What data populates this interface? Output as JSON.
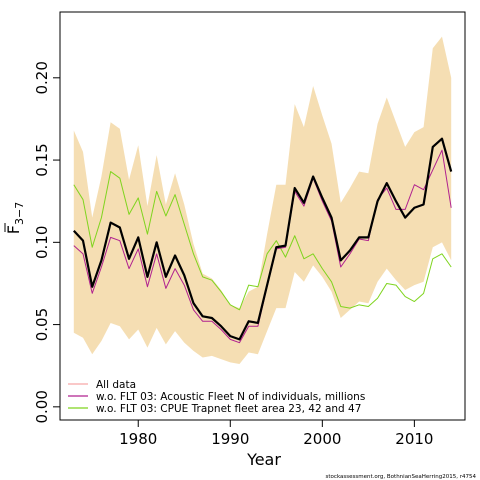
{
  "chart_data": {
    "type": "line",
    "xlabel": "Year",
    "ylabel_main": "F",
    "ylabel_sub": "3−7",
    "credit": "stockassessment.org, BothnianSeaHerring2015, r4754",
    "xlim": [
      1971.5,
      2015.5
    ],
    "ylim": [
      -0.008,
      0.24
    ],
    "xticks": [
      1980,
      1990,
      2000,
      2010
    ],
    "yticks": [
      0.0,
      0.05,
      0.1,
      0.15,
      0.2
    ],
    "ytick_labels": [
      "0.00",
      "0.05",
      "0.10",
      "0.15",
      "0.20"
    ],
    "x": [
      1973,
      1974,
      1975,
      1976,
      1977,
      1978,
      1979,
      1980,
      1981,
      1982,
      1983,
      1984,
      1985,
      1986,
      1987,
      1988,
      1989,
      1990,
      1991,
      1992,
      1993,
      1994,
      1995,
      1996,
      1997,
      1998,
      1999,
      2000,
      2001,
      2002,
      2003,
      2004,
      2005,
      2006,
      2007,
      2008,
      2009,
      2010,
      2011,
      2012,
      2013,
      2014
    ],
    "band": {
      "color": "#f5deb3",
      "upper": [
        0.168,
        0.155,
        0.115,
        0.14,
        0.173,
        0.169,
        0.138,
        0.159,
        0.122,
        0.153,
        0.123,
        0.142,
        0.123,
        0.099,
        0.081,
        0.078,
        0.071,
        0.062,
        0.06,
        0.07,
        0.073,
        0.105,
        0.135,
        0.135,
        0.184,
        0.17,
        0.195,
        0.177,
        0.16,
        0.124,
        0.133,
        0.143,
        0.142,
        0.172,
        0.188,
        0.173,
        0.158,
        0.167,
        0.17,
        0.218,
        0.225,
        0.2
      ],
      "lower": [
        0.045,
        0.042,
        0.032,
        0.04,
        0.051,
        0.049,
        0.041,
        0.047,
        0.036,
        0.048,
        0.038,
        0.046,
        0.039,
        0.034,
        0.03,
        0.031,
        0.029,
        0.027,
        0.026,
        0.033,
        0.032,
        0.046,
        0.06,
        0.06,
        0.082,
        0.076,
        0.086,
        0.079,
        0.07,
        0.054,
        0.059,
        0.064,
        0.063,
        0.076,
        0.084,
        0.077,
        0.071,
        0.074,
        0.076,
        0.097,
        0.1,
        0.089
      ]
    },
    "series": [
      {
        "name": "All data",
        "color": "#000000",
        "width": 2.2,
        "values": [
          0.107,
          0.101,
          0.073,
          0.089,
          0.112,
          0.109,
          0.09,
          0.103,
          0.079,
          0.1,
          0.079,
          0.092,
          0.08,
          0.063,
          0.055,
          0.054,
          0.049,
          0.043,
          0.041,
          0.052,
          0.051,
          0.074,
          0.097,
          0.098,
          0.133,
          0.124,
          0.14,
          0.127,
          0.115,
          0.089,
          0.095,
          0.103,
          0.103,
          0.125,
          0.136,
          0.125,
          0.115,
          0.121,
          0.123,
          0.158,
          0.163,
          0.143
        ]
      },
      {
        "name": "w.o. FLT 03: Acoustic Fleet   N of individuals, millions",
        "color": "#b0208f",
        "width": 1,
        "values": [
          0.098,
          0.093,
          0.069,
          0.085,
          0.103,
          0.101,
          0.084,
          0.096,
          0.073,
          0.093,
          0.072,
          0.084,
          0.074,
          0.059,
          0.052,
          0.052,
          0.047,
          0.041,
          0.039,
          0.049,
          0.049,
          0.073,
          0.096,
          0.097,
          0.131,
          0.122,
          0.139,
          0.125,
          0.113,
          0.085,
          0.093,
          0.102,
          0.101,
          0.126,
          0.133,
          0.12,
          0.12,
          0.135,
          0.132,
          0.144,
          0.156,
          0.121
        ]
      },
      {
        "name": "w.o. FLT 03: CPUE Trapnet fleet area 23, 42 and 47",
        "color": "#7fd41e",
        "width": 1,
        "values": [
          0.135,
          0.126,
          0.097,
          0.115,
          0.143,
          0.139,
          0.117,
          0.127,
          0.105,
          0.131,
          0.116,
          0.129,
          0.111,
          0.093,
          0.079,
          0.077,
          0.07,
          0.062,
          0.059,
          0.074,
          0.073,
          0.093,
          0.101,
          0.091,
          0.104,
          0.09,
          0.093,
          0.084,
          0.076,
          0.061,
          0.06,
          0.062,
          0.061,
          0.066,
          0.075,
          0.074,
          0.067,
          0.064,
          0.069,
          0.09,
          0.093,
          0.085
        ]
      },
      {
        "name": "",
        "color": "#f7a6a6",
        "width": 1,
        "values": [
          0.107,
          0.101,
          0.073,
          0.089,
          0.112,
          0.109,
          0.09,
          0.103,
          0.079,
          0.1,
          0.079,
          0.092,
          0.08,
          0.063,
          0.055,
          0.054,
          0.049,
          0.043,
          0.041,
          0.052,
          0.051,
          0.074,
          0.097,
          0.098,
          0.133,
          0.124,
          0.14,
          0.127,
          0.115,
          0.089,
          0.095,
          0.103,
          0.103,
          0.125,
          0.136,
          0.125,
          0.115,
          0.121,
          0.123,
          0.158,
          0.163,
          0.143
        ]
      }
    ],
    "legend": {
      "placement": "bottom-left",
      "entries": [
        {
          "label": "All data",
          "color": "#f7a6a6"
        },
        {
          "label": "w.o. FLT 03: Acoustic Fleet   N of individuals, millions",
          "color": "#b0208f"
        },
        {
          "label": "w.o. FLT 03: CPUE Trapnet fleet area 23, 42 and 47",
          "color": "#7fd41e"
        }
      ]
    },
    "grid": false
  }
}
